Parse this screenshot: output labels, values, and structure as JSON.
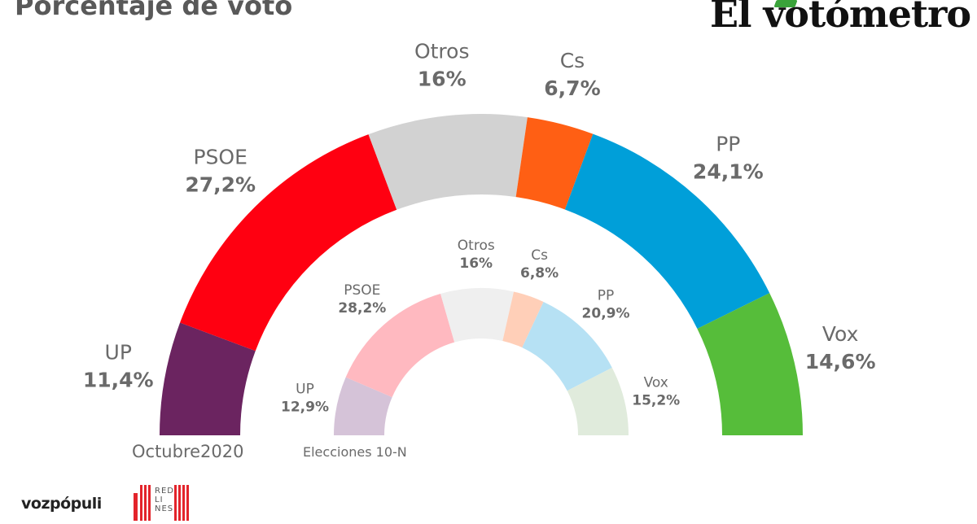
{
  "header": {
    "title": "Porcentaje de voto",
    "brand": "El votómetro"
  },
  "footer": {
    "logo_vozpopuli": "vozpópuli",
    "logo_redlines": "RED\nLI\nNES"
  },
  "colors": {
    "UP": "#6b2460",
    "PSOE": "#ff0011",
    "Otros": "#d2d2d2",
    "Cs": "#ff5f14",
    "PP": "#009fd9",
    "Vox": "#56bd3a",
    "UP_light": "#d5c3d8",
    "PSOE_light": "#ffb9c0",
    "Otros_light": "#efefef",
    "Cs_light": "#ffcfb8",
    "PP_light": "#b6e1f4",
    "Vox_light": "#e0ebdc",
    "label": "#6a6a6a"
  },
  "chart_data": [
    {
      "type": "pie",
      "shape": "semicircle-donut",
      "series_label": "Octubre2020",
      "categories": [
        "UP",
        "PSOE",
        "Otros",
        "Cs",
        "PP",
        "Vox"
      ],
      "values": [
        11.4,
        27.2,
        16,
        6.7,
        24.1,
        14.6
      ],
      "value_labels": [
        "11,4%",
        "27,2%",
        "16%",
        "6,7%",
        "24,1%",
        "14,6%"
      ]
    },
    {
      "type": "pie",
      "shape": "semicircle-donut",
      "series_label": "Elecciones 10-N",
      "categories": [
        "UP",
        "PSOE",
        "Otros",
        "Cs",
        "PP",
        "Vox"
      ],
      "values": [
        12.9,
        28.2,
        16,
        6.8,
        20.9,
        15.2
      ],
      "value_labels": [
        "12,9%",
        "28,2%",
        "16%",
        "6,8%",
        "20,9%",
        "15,2%"
      ]
    }
  ]
}
